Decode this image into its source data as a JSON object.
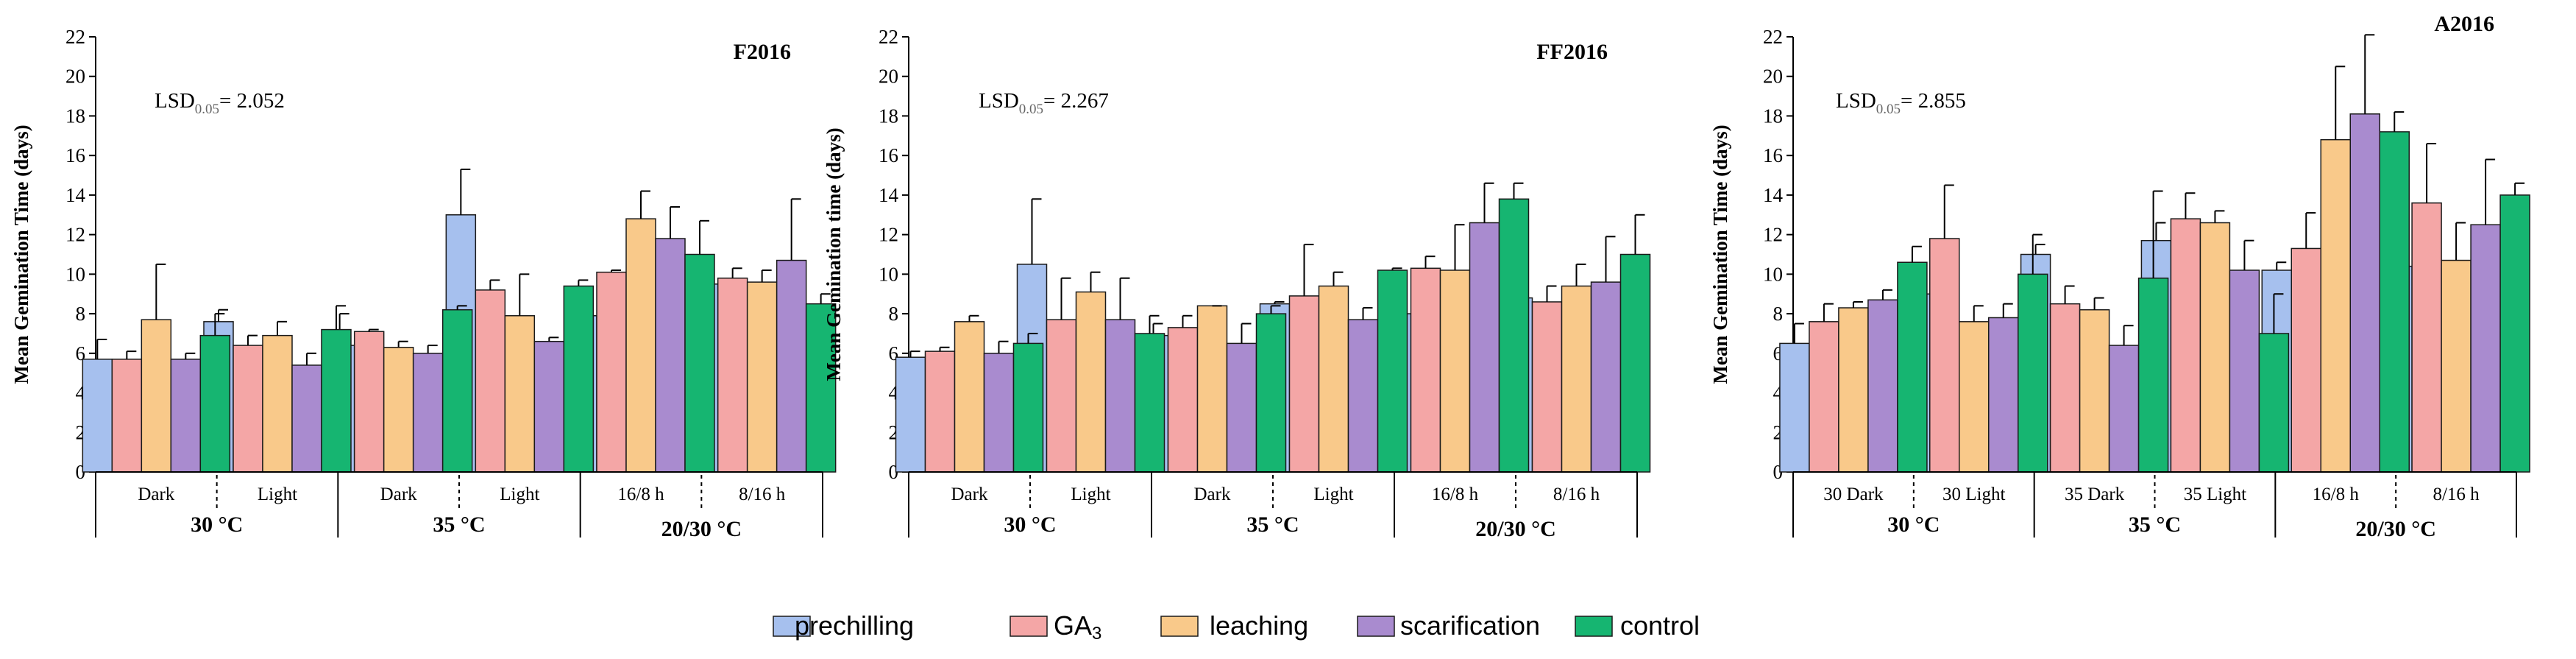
{
  "colors": {
    "prechilling": "#a6c0ee",
    "GA3": "#f4a6a6",
    "leaching": "#f9c98a",
    "scarification": "#a98bcf",
    "control": "#16b571",
    "axis": "#000000"
  },
  "legend": {
    "items": [
      {
        "key": "prechilling",
        "label": "prechilling"
      },
      {
        "key": "GA3",
        "label": "GA",
        "sub": "3"
      },
      {
        "key": "leaching",
        "label": "leaching"
      },
      {
        "key": "scarification",
        "label": "scarification"
      },
      {
        "key": "control",
        "label": "control"
      }
    ]
  },
  "chart_data": [
    {
      "type": "bar",
      "title": "F2016",
      "ylabel": "Mean Gemination Time (days)",
      "ylim": [
        0,
        22
      ],
      "yticks": [
        0,
        2,
        4,
        6,
        8,
        10,
        12,
        14,
        16,
        18,
        20,
        22
      ],
      "lsd": {
        "prefix": "LSD",
        "sub": "0.05",
        "value": "= 2.052"
      },
      "categories": [
        "Dark",
        "Light",
        "Dark",
        "Light",
        "16/8 h",
        "8/16 h"
      ],
      "groups": [
        {
          "label": "30 °C",
          "span": [
            0,
            1
          ]
        },
        {
          "label": "35 °C",
          "span": [
            2,
            3
          ]
        },
        {
          "label": "20/30 °C",
          "span": [
            4,
            5
          ]
        }
      ],
      "series": [
        {
          "name": "prechilling",
          "values": [
            5.7,
            7.6,
            6.4,
            13.0,
            7.9,
            9.5
          ],
          "errors": [
            1.0,
            0.6,
            1.6,
            2.3,
            0.7,
            0.2
          ]
        },
        {
          "name": "GA3",
          "values": [
            5.7,
            6.4,
            7.1,
            9.2,
            10.1,
            9.8
          ],
          "errors": [
            0.4,
            0.5,
            0.1,
            0.5,
            0.1,
            0.5
          ]
        },
        {
          "name": "leaching",
          "values": [
            7.7,
            6.9,
            6.3,
            7.9,
            12.8,
            9.6
          ],
          "errors": [
            2.8,
            0.7,
            0.3,
            2.1,
            1.4,
            0.6
          ]
        },
        {
          "name": "scarification",
          "values": [
            5.7,
            5.4,
            6.0,
            6.6,
            11.8,
            10.7
          ],
          "errors": [
            0.3,
            0.6,
            0.4,
            0.2,
            1.6,
            3.1
          ]
        },
        {
          "name": "control",
          "values": [
            6.9,
            7.2,
            8.2,
            9.4,
            11.0,
            8.5
          ],
          "errors": [
            1.1,
            1.2,
            0.2,
            0.3,
            1.7,
            0.5
          ]
        }
      ]
    },
    {
      "type": "bar",
      "title": "FF2016",
      "ylabel": "Mean Gemination time (days)",
      "ylim": [
        0,
        22
      ],
      "yticks": [
        0,
        2,
        4,
        6,
        8,
        10,
        12,
        14,
        16,
        18,
        20,
        22
      ],
      "lsd": {
        "prefix": "LSD",
        "sub": "0.05",
        "value": "= 2.267"
      },
      "categories": [
        "Dark",
        "Light",
        "Dark",
        "Light",
        "16/8 h",
        "8/16 h"
      ],
      "groups": [
        {
          "label": "30 °C",
          "span": [
            0,
            1
          ]
        },
        {
          "label": "35 °C",
          "span": [
            2,
            3
          ]
        },
        {
          "label": "20/30 °C",
          "span": [
            4,
            5
          ]
        }
      ],
      "series": [
        {
          "name": "prechilling",
          "values": [
            5.8,
            10.5,
            6.9,
            8.5,
            8.0,
            8.8
          ],
          "errors": [
            0.3,
            3.3,
            0.6,
            0.1,
            0.4,
            1.0
          ]
        },
        {
          "name": "GA3",
          "values": [
            6.1,
            7.7,
            7.3,
            8.9,
            10.3,
            8.6
          ],
          "errors": [
            0.2,
            2.1,
            0.6,
            2.6,
            0.6,
            0.8
          ]
        },
        {
          "name": "leaching",
          "values": [
            7.6,
            9.1,
            8.4,
            9.4,
            10.2,
            9.4
          ],
          "errors": [
            0.3,
            1.0,
            0.0,
            0.7,
            2.3,
            1.1
          ]
        },
        {
          "name": "scarification",
          "values": [
            6.0,
            7.7,
            6.5,
            7.7,
            12.6,
            9.6
          ],
          "errors": [
            0.6,
            2.1,
            1.0,
            0.6,
            2.0,
            2.3
          ]
        },
        {
          "name": "control",
          "values": [
            6.5,
            7.0,
            8.0,
            10.2,
            13.8,
            11.0
          ],
          "errors": [
            0.5,
            0.9,
            0.4,
            0.1,
            0.8,
            2.0
          ]
        }
      ]
    },
    {
      "type": "bar",
      "title": "A2016",
      "ylabel": "Mean Gemination Time (days)",
      "ylim": [
        0,
        22
      ],
      "yticks": [
        0,
        2,
        4,
        6,
        8,
        10,
        12,
        14,
        16,
        18,
        20,
        22
      ],
      "lsd": {
        "prefix": "LSD",
        "sub": "0.05",
        "value": "= 2.855"
      },
      "categories": [
        "30 Dark",
        "30 Light",
        "35 Dark",
        "35 Light",
        "16/8 h",
        "8/16 h"
      ],
      "groups": [
        {
          "label": "30 °C",
          "span": [
            0,
            1
          ]
        },
        {
          "label": "35 °C",
          "span": [
            2,
            3
          ]
        },
        {
          "label": "20/30 °C",
          "span": [
            4,
            5
          ]
        }
      ],
      "series": [
        {
          "name": "prechilling",
          "values": [
            6.5,
            9.0,
            11.0,
            11.7,
            10.2,
            10.4
          ],
          "errors": [
            1.0,
            1.0,
            0.5,
            0.9,
            0.4,
            2.5
          ]
        },
        {
          "name": "GA3",
          "values": [
            7.6,
            11.8,
            8.5,
            12.8,
            11.3,
            13.6
          ],
          "errors": [
            0.9,
            2.7,
            0.9,
            1.3,
            1.8,
            3.0
          ]
        },
        {
          "name": "leaching",
          "values": [
            8.3,
            7.6,
            8.2,
            12.6,
            16.8,
            10.7
          ],
          "errors": [
            0.3,
            0.8,
            0.6,
            0.6,
            3.7,
            1.9
          ]
        },
        {
          "name": "scarification",
          "values": [
            8.7,
            7.8,
            6.4,
            10.2,
            18.1,
            12.5
          ],
          "errors": [
            0.5,
            0.7,
            1.0,
            1.5,
            4.0,
            3.3
          ]
        },
        {
          "name": "control",
          "values": [
            10.6,
            10.0,
            9.8,
            7.0,
            17.2,
            14.0
          ],
          "errors": [
            0.8,
            2.0,
            4.4,
            2.0,
            1.0,
            0.6
          ]
        }
      ]
    }
  ]
}
